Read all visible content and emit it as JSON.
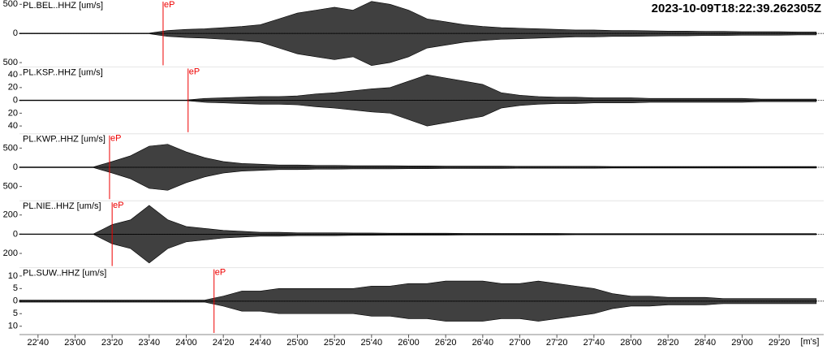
{
  "chart_data": {
    "type": "seismogram",
    "title": "2023-10-09T18:22:39.262305Z",
    "xlabel": "[m's]",
    "xlim": [
      1350,
      1784
    ],
    "xticks": [
      {
        "value": 1360,
        "label": "22'40"
      },
      {
        "value": 1380,
        "label": "23'00"
      },
      {
        "value": 1400,
        "label": "23'20"
      },
      {
        "value": 1420,
        "label": "23'40"
      },
      {
        "value": 1440,
        "label": "24'00"
      },
      {
        "value": 1460,
        "label": "24'20"
      },
      {
        "value": 1480,
        "label": "24'40"
      },
      {
        "value": 1500,
        "label": "25'00"
      },
      {
        "value": 1520,
        "label": "25'20"
      },
      {
        "value": 1540,
        "label": "25'40"
      },
      {
        "value": 1560,
        "label": "26'00"
      },
      {
        "value": 1580,
        "label": "26'20"
      },
      {
        "value": 1600,
        "label": "26'40"
      },
      {
        "value": 1620,
        "label": "27'00"
      },
      {
        "value": 1640,
        "label": "27'20"
      },
      {
        "value": 1660,
        "label": "27'40"
      },
      {
        "value": 1680,
        "label": "28'00"
      },
      {
        "value": 1700,
        "label": "28'20"
      },
      {
        "value": 1720,
        "label": "28'40"
      },
      {
        "value": 1740,
        "label": "29'00"
      },
      {
        "value": 1760,
        "label": "29'20"
      }
    ],
    "x": [
      1350,
      1360,
      1370,
      1380,
      1390,
      1400,
      1410,
      1420,
      1430,
      1440,
      1450,
      1460,
      1470,
      1480,
      1490,
      1500,
      1510,
      1520,
      1530,
      1540,
      1550,
      1560,
      1570,
      1580,
      1590,
      1600,
      1610,
      1620,
      1630,
      1640,
      1650,
      1660,
      1670,
      1680,
      1690,
      1700,
      1710,
      1720,
      1730,
      1740,
      1750,
      1760,
      1770,
      1780
    ],
    "pick_label": "eP",
    "series": [
      {
        "name": "PL.BEL..HHZ [um/s]",
        "color": "#000000",
        "ylim": [
          -560,
          560
        ],
        "yticks": [
          500,
          0,
          {
            "value": -500,
            "label": "500"
          }
        ],
        "pick": 1427.5,
        "values": [
          5,
          5,
          5,
          5,
          5,
          5,
          5,
          5,
          50,
          70,
          80,
          100,
          120,
          150,
          250,
          350,
          400,
          450,
          400,
          550,
          500,
          400,
          250,
          200,
          150,
          120,
          100,
          90,
          80,
          70,
          60,
          60,
          50,
          50,
          45,
          40,
          40,
          35,
          35,
          30,
          30,
          30,
          25,
          25
        ]
      },
      {
        "name": "PL.KSP..HHZ [um/s]",
        "color": "#000000",
        "ylim": [
          -51,
          51
        ],
        "yticks": [
          40,
          20,
          0,
          {
            "value": -20,
            "label": "20"
          },
          {
            "value": -40,
            "label": "40"
          }
        ],
        "pick": 1441,
        "values": [
          0.5,
          0.5,
          0.5,
          0.5,
          0.5,
          0.5,
          0.5,
          0.5,
          0.5,
          0.5,
          3,
          4,
          5,
          6,
          6,
          7,
          10,
          12,
          15,
          18,
          20,
          30,
          40,
          35,
          30,
          25,
          12,
          8,
          6,
          5,
          5,
          4,
          4,
          4,
          3,
          3,
          3,
          3,
          3,
          3,
          2,
          2,
          2,
          2
        ]
      },
      {
        "name": "PL.KWP..HHZ [um/s]",
        "color": "#000000",
        "ylim": [
          -850,
          850
        ],
        "yticks": [
          500,
          0,
          {
            "value": -500,
            "label": "500"
          }
        ],
        "pick": 1398.6,
        "values": [
          10,
          10,
          10,
          10,
          10,
          150,
          300,
          550,
          600,
          400,
          250,
          150,
          100,
          80,
          60,
          60,
          50,
          50,
          40,
          40,
          40,
          35,
          35,
          30,
          30,
          30,
          30,
          25,
          25,
          25,
          25,
          25,
          20,
          20,
          20,
          20,
          20,
          20,
          20,
          20,
          20,
          20,
          20,
          20
        ]
      },
      {
        "name": "PL.NIE..HHZ [um/s]",
        "color": "#000000",
        "ylim": [
          -340,
          340
        ],
        "yticks": [
          200,
          0,
          {
            "value": -200,
            "label": "200"
          }
        ],
        "pick": 1400,
        "values": [
          3,
          3,
          3,
          3,
          3,
          100,
          150,
          300,
          150,
          80,
          60,
          40,
          30,
          20,
          20,
          15,
          15,
          15,
          12,
          12,
          10,
          10,
          10,
          10,
          8,
          8,
          8,
          8,
          8,
          8,
          6,
          6,
          6,
          6,
          6,
          6,
          6,
          6,
          6,
          6,
          6,
          6,
          6,
          6
        ]
      },
      {
        "name": "PL.SUW..HHZ [um/s]",
        "color": "#000000",
        "ylim": [
          -13,
          13
        ],
        "yticks": [
          10,
          5,
          0,
          {
            "value": -5,
            "label": "5"
          },
          {
            "value": -10,
            "label": "10"
          }
        ],
        "pick": 1455,
        "values": [
          0.4,
          0.4,
          0.4,
          0.4,
          0.4,
          0.4,
          0.4,
          0.4,
          0.4,
          0.4,
          0.4,
          2,
          4,
          4,
          5,
          5,
          5,
          5,
          5,
          6,
          6,
          7,
          7,
          8,
          8,
          8,
          7,
          7,
          8,
          7,
          6,
          5,
          3,
          2,
          2,
          1.5,
          1.5,
          1.5,
          1,
          1,
          1,
          1,
          1,
          1
        ]
      }
    ]
  }
}
